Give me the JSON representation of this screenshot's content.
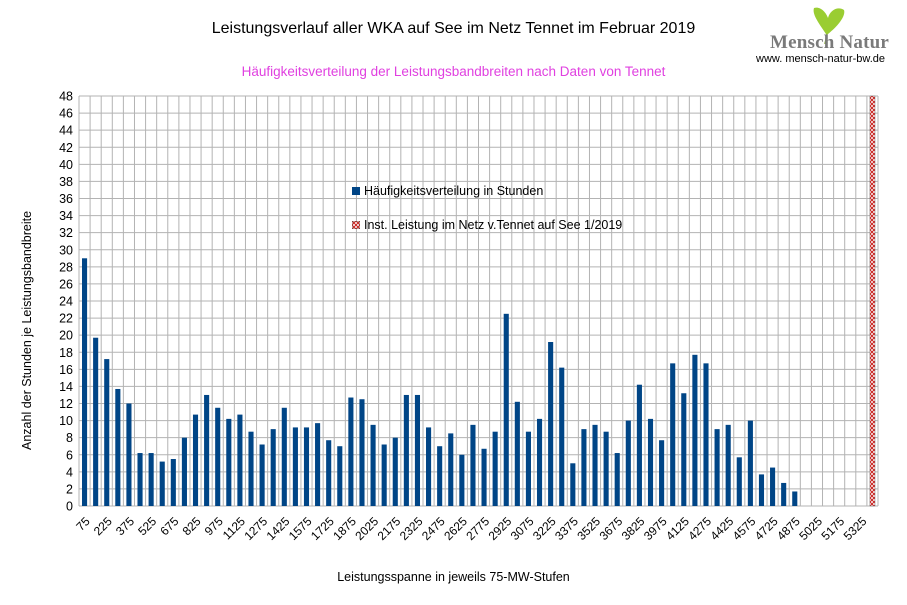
{
  "header": {
    "title": "Leistungsverlauf aller WKA auf See im Netz Tennet im Februar 2019",
    "subtitle": "Häufigkeitsverteilung der Leistungsbandbreiten nach Daten von Tennet"
  },
  "logo": {
    "name": "Mensch Natur",
    "url": "www. mensch-natur-bw.de"
  },
  "chart_data": {
    "type": "bar",
    "title": "Leistungsverlauf aller WKA auf See im Netz Tennet im Februar 2019",
    "subtitle": "Häufigkeitsverteilung der Leistungsbandbreiten nach Daten von Tennet",
    "xlabel": "Leistungsspanne in jeweils 75-MW-Stufen",
    "ylabel": "Anzahl der Stunden je Leistungsbandbreite",
    "ylim": [
      0,
      48
    ],
    "ytick_step": 2,
    "grid": true,
    "legend_position": "center",
    "tick_labels": [
      "75",
      "225",
      "375",
      "525",
      "675",
      "825",
      "975",
      "1125",
      "1275",
      "1425",
      "1575",
      "1725",
      "1875",
      "2025",
      "2175",
      "2325",
      "2475",
      "2625",
      "2775",
      "2925",
      "3075",
      "3225",
      "3375",
      "3525",
      "3675",
      "3825",
      "3975",
      "4125",
      "4275",
      "4425",
      "4575",
      "4725",
      "4875",
      "5025",
      "5175",
      "5325"
    ],
    "categories": [
      75,
      150,
      225,
      300,
      375,
      450,
      525,
      600,
      675,
      750,
      825,
      900,
      975,
      1050,
      1125,
      1200,
      1275,
      1350,
      1425,
      1500,
      1575,
      1650,
      1725,
      1800,
      1875,
      1950,
      2025,
      2100,
      2175,
      2250,
      2325,
      2400,
      2475,
      2550,
      2625,
      2700,
      2775,
      2850,
      2925,
      3000,
      3075,
      3150,
      3225,
      3300,
      3375,
      3450,
      3525,
      3600,
      3675,
      3750,
      3825,
      3900,
      3975,
      4050,
      4125,
      4200,
      4275,
      4350,
      4425,
      4500,
      4575,
      4650,
      4725,
      4800,
      4875,
      4950,
      5025,
      5100,
      5175,
      5250,
      5325,
      5400
    ],
    "series": [
      {
        "name": "Häufigkeitsverteilung in Stunden",
        "color": "#004586",
        "values": [
          29,
          19.7,
          17.2,
          13.7,
          12,
          6.2,
          6.2,
          5.2,
          5.5,
          8,
          10.7,
          13,
          11.5,
          10.2,
          10.7,
          8.7,
          7.2,
          9,
          11.5,
          9.2,
          9.2,
          9.7,
          7.7,
          7,
          12.7,
          12.5,
          9.5,
          7.2,
          8,
          13,
          13,
          9.2,
          7,
          8.5,
          6,
          9.5,
          6.7,
          8.7,
          22.5,
          12.2,
          8.7,
          10.2,
          19.2,
          16.2,
          5,
          9,
          9.5,
          8.7,
          6.2,
          10,
          14.2,
          10.2,
          7.7,
          16.7,
          13.2,
          17.7,
          16.7,
          9,
          9.5,
          5.7,
          10,
          3.7,
          4.5,
          2.7,
          1.7,
          0,
          0,
          0,
          0,
          0,
          0,
          0
        ]
      },
      {
        "name": "Inst. Leistung im Netz v.Tennet auf See 1/2019",
        "color": "#c9211e",
        "category": 5400,
        "value": 48
      }
    ]
  },
  "icons": {
    "logo": "ginkgo-leaf-icon"
  }
}
